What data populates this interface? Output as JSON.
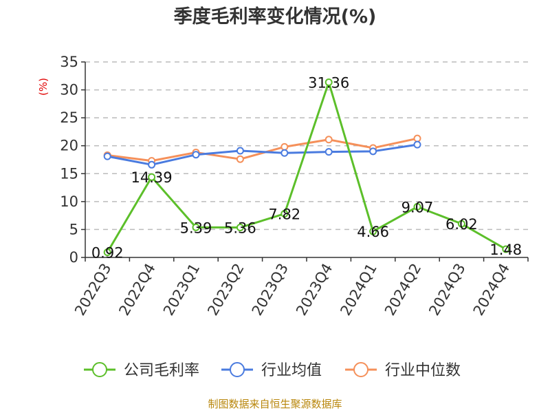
{
  "chart_data": {
    "type": "line",
    "title": "季度毛利率变化情况(%)",
    "ylabel": "(%)",
    "ylim": [
      0,
      35
    ],
    "yticks": [
      0,
      5,
      10,
      15,
      20,
      25,
      30,
      35
    ],
    "grid": true,
    "legend_position": "bottom",
    "categories": [
      "2022Q3",
      "2022Q4",
      "2023Q1",
      "2023Q2",
      "2023Q3",
      "2023Q4",
      "2024Q1",
      "2024Q2",
      "2024Q3",
      "2024Q4"
    ],
    "series": [
      {
        "name": "公司毛利率",
        "color": "#5cbf2a",
        "values": [
          0.92,
          14.39,
          5.39,
          5.36,
          7.82,
          31.36,
          4.66,
          9.07,
          6.02,
          1.48
        ],
        "labels": [
          "0.92",
          "14.39",
          "5.39",
          "5.36",
          "7.82",
          "31.36",
          "4.66",
          "9.07",
          "6.02",
          "1.48"
        ]
      },
      {
        "name": "行业均值",
        "color": "#4a7bdf",
        "values": [
          18.1,
          16.6,
          18.4,
          19.1,
          18.7,
          18.9,
          19.0,
          20.2,
          null,
          null
        ]
      },
      {
        "name": "行业中位数",
        "color": "#f5905a",
        "values": [
          18.3,
          17.3,
          18.8,
          17.6,
          19.8,
          21.1,
          19.6,
          21.3,
          null,
          null
        ]
      }
    ],
    "source": "制图数据来自恒生聚源数据库"
  }
}
